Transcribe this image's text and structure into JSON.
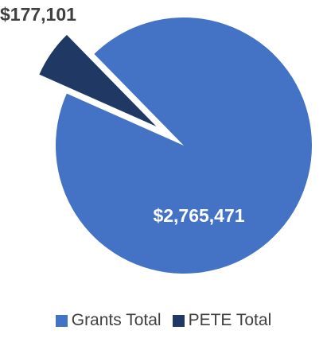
{
  "chart_data": {
    "type": "pie",
    "title": "",
    "series": [
      {
        "name": "",
        "slices": [
          {
            "label": "Grants Total",
            "value": 2765471,
            "display": "$2,765,471",
            "color": "#4472c4",
            "exploded": false
          },
          {
            "label": "PETE Total",
            "value": 177101,
            "display": "$177,101",
            "color": "#203864",
            "exploded": true
          }
        ]
      }
    ],
    "legend": {
      "placement": "bottom",
      "entries": [
        "Grants Total",
        "PETE Total"
      ]
    },
    "data_label_colors": {
      "inside": "#ffffff",
      "outside": "#404040"
    }
  }
}
